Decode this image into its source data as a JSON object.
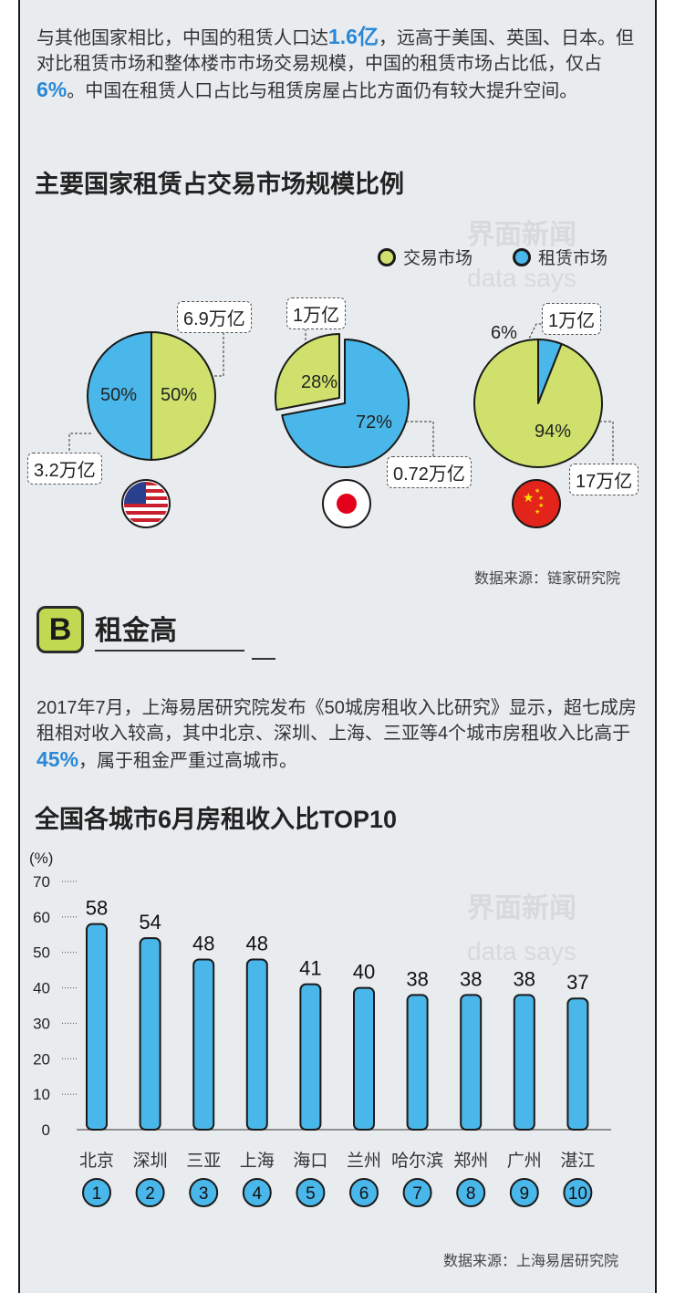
{
  "intro": {
    "p1_a": "与其他国家相比，中国的租赁人口达",
    "p1_hl1": "1.6亿",
    "p1_b": "，远高于美国、英国、日本。但对比租赁市场和整体楼市市场交易规模，中国的租赁市场占比低，仅占",
    "p1_hl2": "6%",
    "p1_c": "。中国在租赁人口占比与租赁房屋占比方面仍有较大提升空间。"
  },
  "pie_section": {
    "title": "主要国家租赁占交易市场规模比例",
    "source": "数据来源：链家研究院"
  },
  "section_b": {
    "badge": "B",
    "title": "租金高",
    "p_a": "2017年7月，上海易居研究院发布《50城房租收入比研究》显示，超七成房租相对收入较高，其中北京、深圳、上海、三亚等4个城市房租收入比高于",
    "p_hl": "45%",
    "p_b": "，属于租金严重过高城市。"
  },
  "bar_section": {
    "title": "全国各城市6月房租收入比TOP10",
    "source": "数据来源：上海易居研究院"
  },
  "watermark": {
    "brand": "界面新闻",
    "sub": "data says"
  },
  "colors": {
    "trade": "#cfe16c",
    "rent": "#4ab7ea",
    "accent": "#2a88d6",
    "badge": "#c1d950"
  },
  "chart_data": [
    {
      "type": "pie",
      "title": "主要国家租赁占交易市场规模比例",
      "legend": [
        {
          "name": "交易市场",
          "color": "#cfe16c"
        },
        {
          "name": "租赁市场",
          "color": "#4ab7ea"
        }
      ],
      "legend_position": "top-right",
      "pies": [
        {
          "flag": "us-flag",
          "slices": [
            {
              "name": "交易市场",
              "value": 50,
              "label": "50%",
              "amount": "6.9万亿"
            },
            {
              "name": "租赁市场",
              "value": 50,
              "label": "50%",
              "amount": "3.2万亿"
            }
          ]
        },
        {
          "flag": "japan-flag",
          "slices": [
            {
              "name": "交易市场",
              "value": 28,
              "label": "28%",
              "amount": "1万亿"
            },
            {
              "name": "租赁市场",
              "value": 72,
              "label": "72%",
              "amount": "0.72万亿"
            }
          ]
        },
        {
          "flag": "china-flag",
          "slices": [
            {
              "name": "交易市场",
              "value": 94,
              "label": "94%",
              "amount": "17万亿"
            },
            {
              "name": "租赁市场",
              "value": 6,
              "label": "6%",
              "amount": "1万亿"
            }
          ]
        }
      ]
    },
    {
      "type": "bar",
      "title": "全国各城市6月房租收入比TOP10",
      "ylabel": "(%)",
      "ylim": [
        0,
        70
      ],
      "yticks": [
        0,
        10,
        20,
        30,
        40,
        50,
        60,
        70
      ],
      "categories": [
        "北京",
        "深圳",
        "三亚",
        "上海",
        "海口",
        "兰州",
        "哈尔滨",
        "郑州",
        "广州",
        "湛江"
      ],
      "values": [
        58,
        54,
        48,
        48,
        41,
        40,
        38,
        38,
        38,
        37
      ],
      "ranks": [
        "1",
        "2",
        "3",
        "4",
        "5",
        "6",
        "7",
        "8",
        "9",
        "10"
      ],
      "color": "#4ab7ea"
    }
  ]
}
